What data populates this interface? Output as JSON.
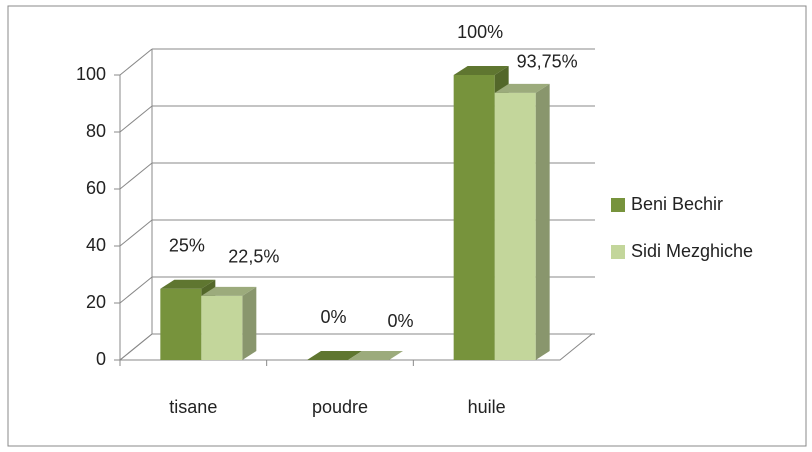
{
  "chart_data": {
    "type": "bar3d",
    "categories": [
      "tisane",
      "poudre",
      "huile"
    ],
    "series": [
      {
        "name": "Beni Bechir",
        "color": "#77933c",
        "values": [
          25,
          0,
          100
        ],
        "value_labels": [
          "25%",
          "0%",
          "100%"
        ]
      },
      {
        "name": "Sidi Mezghiche",
        "color": "#c3d69b",
        "values": [
          22.5,
          0,
          93.75
        ],
        "value_labels": [
          "22,5%",
          "0%",
          "93,75%"
        ]
      }
    ],
    "ylim": [
      0,
      100
    ],
    "yticks": [
      0,
      20,
      40,
      60,
      80,
      100
    ],
    "grid": true,
    "legend": "right"
  }
}
